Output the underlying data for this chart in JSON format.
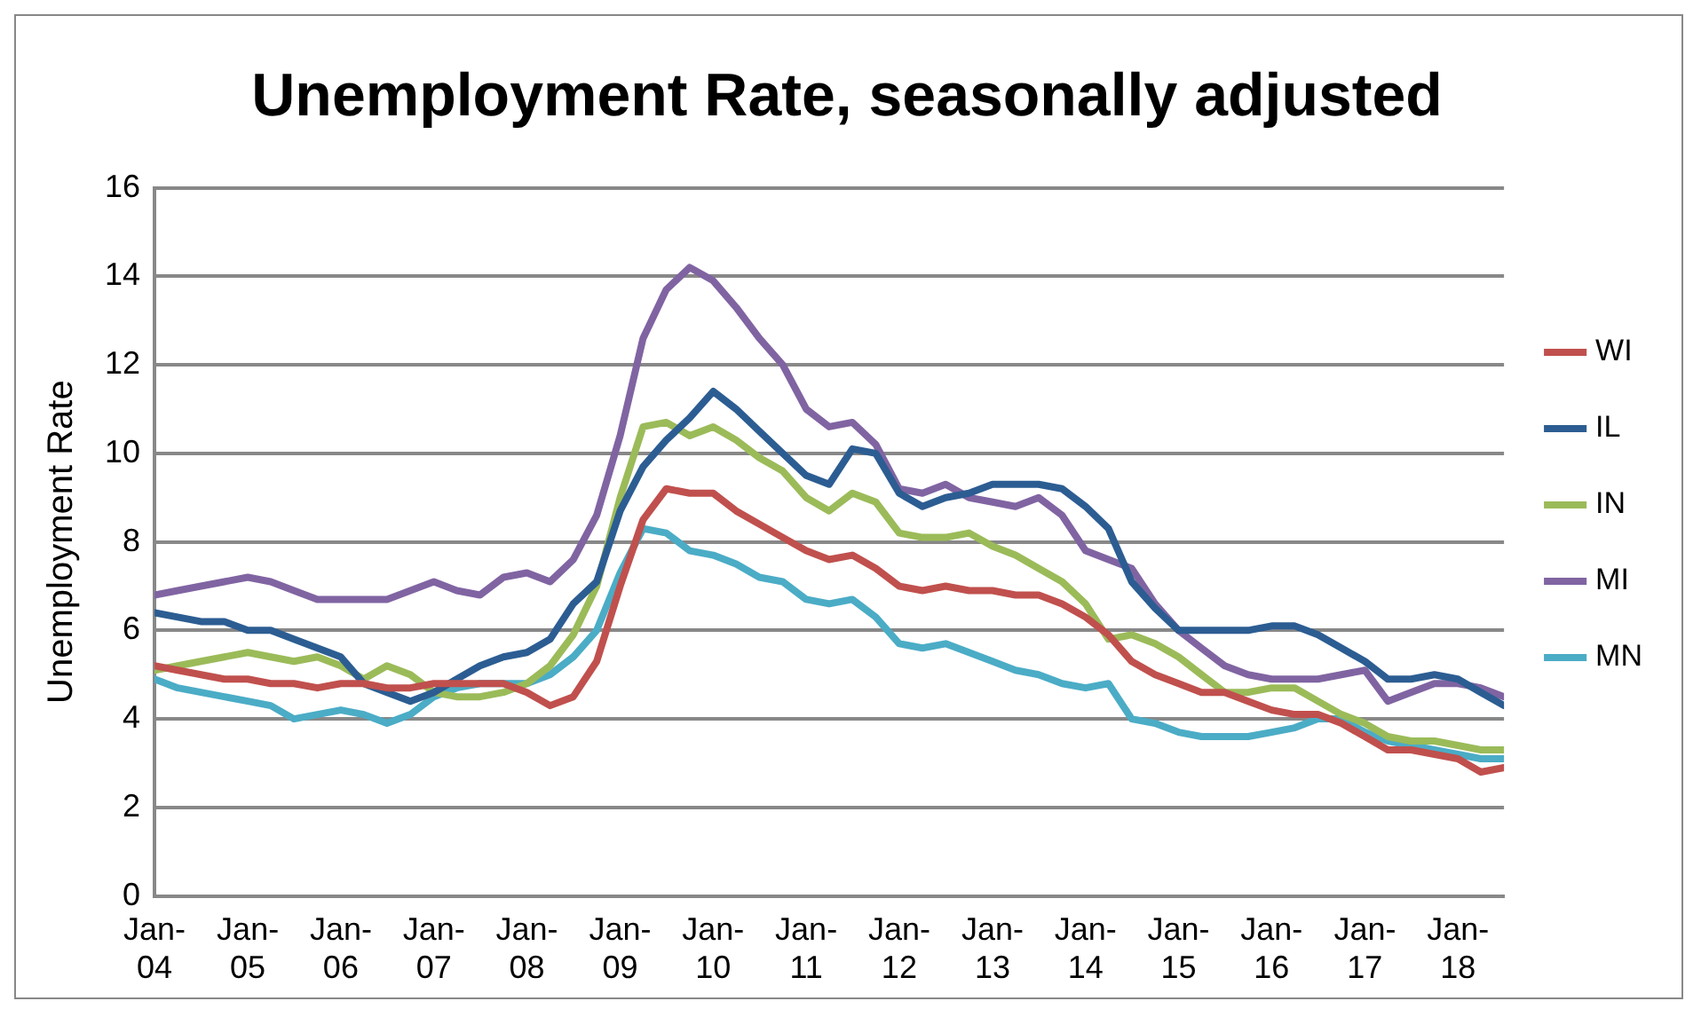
{
  "chart_data": {
    "type": "line",
    "title": "Unemployment Rate, seasonally adjusted",
    "ylabel": "Unemployment Rate",
    "x": [
      "2004-01",
      "2004-04",
      "2004-07",
      "2004-10",
      "2005-01",
      "2005-04",
      "2005-07",
      "2005-10",
      "2006-01",
      "2006-04",
      "2006-07",
      "2006-10",
      "2007-01",
      "2007-04",
      "2007-07",
      "2007-10",
      "2008-01",
      "2008-04",
      "2008-07",
      "2008-10",
      "2009-01",
      "2009-04",
      "2009-07",
      "2009-10",
      "2010-01",
      "2010-04",
      "2010-07",
      "2010-10",
      "2011-01",
      "2011-04",
      "2011-07",
      "2011-10",
      "2012-01",
      "2012-04",
      "2012-07",
      "2012-10",
      "2013-01",
      "2013-04",
      "2013-07",
      "2013-10",
      "2014-01",
      "2014-04",
      "2014-07",
      "2014-10",
      "2015-01",
      "2015-04",
      "2015-07",
      "2015-10",
      "2016-01",
      "2016-04",
      "2016-07",
      "2016-10",
      "2017-01",
      "2017-04",
      "2017-07",
      "2017-10",
      "2018-01",
      "2018-04",
      "2018-07"
    ],
    "series": [
      {
        "name": "WI",
        "color": "#c0504d",
        "values": [
          5.2,
          5.1,
          5.0,
          4.9,
          4.9,
          4.8,
          4.8,
          4.7,
          4.8,
          4.8,
          4.7,
          4.7,
          4.8,
          4.8,
          4.8,
          4.8,
          4.6,
          4.3,
          4.5,
          5.3,
          7.0,
          8.5,
          9.2,
          9.1,
          9.1,
          8.7,
          8.4,
          8.1,
          7.8,
          7.6,
          7.7,
          7.4,
          7.0,
          6.9,
          7.0,
          6.9,
          6.9,
          6.8,
          6.8,
          6.6,
          6.3,
          5.9,
          5.3,
          5.0,
          4.8,
          4.6,
          4.6,
          4.4,
          4.2,
          4.1,
          4.1,
          3.9,
          3.6,
          3.3,
          3.3,
          3.2,
          3.1,
          2.8,
          2.9
        ]
      },
      {
        "name": "IL",
        "color": "#2c5d92",
        "values": [
          6.4,
          6.3,
          6.2,
          6.2,
          6.0,
          6.0,
          5.8,
          5.6,
          5.4,
          4.8,
          4.6,
          4.4,
          4.6,
          4.9,
          5.2,
          5.4,
          5.5,
          5.8,
          6.6,
          7.1,
          8.7,
          9.7,
          10.3,
          10.8,
          11.4,
          11.0,
          10.5,
          10.0,
          9.5,
          9.3,
          10.1,
          10.0,
          9.1,
          8.8,
          9.0,
          9.1,
          9.3,
          9.3,
          9.3,
          9.2,
          8.8,
          8.3,
          7.1,
          6.5,
          6.0,
          6.0,
          6.0,
          6.0,
          6.1,
          6.1,
          5.9,
          5.6,
          5.3,
          4.9,
          4.9,
          5.0,
          4.9,
          4.6,
          4.3
        ]
      },
      {
        "name": "IN",
        "color": "#9bbb59",
        "values": [
          5.1,
          5.2,
          5.3,
          5.4,
          5.5,
          5.4,
          5.3,
          5.4,
          5.2,
          4.9,
          5.2,
          5.0,
          4.6,
          4.5,
          4.5,
          4.6,
          4.8,
          5.2,
          5.9,
          7.0,
          9.0,
          10.6,
          10.7,
          10.4,
          10.6,
          10.3,
          9.9,
          9.6,
          9.0,
          8.7,
          9.1,
          8.9,
          8.2,
          8.1,
          8.1,
          8.2,
          7.9,
          7.7,
          7.4,
          7.1,
          6.6,
          5.8,
          5.9,
          5.7,
          5.4,
          5.0,
          4.6,
          4.6,
          4.7,
          4.7,
          4.4,
          4.1,
          3.9,
          3.6,
          3.5,
          3.5,
          3.4,
          3.3,
          3.3
        ]
      },
      {
        "name": "MI",
        "color": "#8064a2",
        "values": [
          6.8,
          6.9,
          7.0,
          7.1,
          7.2,
          7.1,
          6.9,
          6.7,
          6.7,
          6.7,
          6.7,
          6.9,
          7.1,
          6.9,
          6.8,
          7.2,
          7.3,
          7.1,
          7.6,
          8.6,
          10.4,
          12.6,
          13.7,
          14.2,
          13.9,
          13.3,
          12.6,
          12.0,
          11.0,
          10.6,
          10.7,
          10.2,
          9.2,
          9.1,
          9.3,
          9.0,
          8.9,
          8.8,
          9.0,
          8.6,
          7.8,
          7.6,
          7.4,
          6.6,
          6.0,
          5.6,
          5.2,
          5.0,
          4.9,
          4.9,
          4.9,
          5.0,
          5.1,
          4.4,
          4.6,
          4.8,
          4.8,
          4.7,
          4.5
        ]
      },
      {
        "name": "MN",
        "color": "#4bacc6",
        "values": [
          4.9,
          4.7,
          4.6,
          4.5,
          4.4,
          4.3,
          4.0,
          4.1,
          4.2,
          4.1,
          3.9,
          4.1,
          4.5,
          4.7,
          4.8,
          4.8,
          4.8,
          5.0,
          5.4,
          6.0,
          7.3,
          8.3,
          8.2,
          7.8,
          7.7,
          7.5,
          7.2,
          7.1,
          6.7,
          6.6,
          6.7,
          6.3,
          5.7,
          5.6,
          5.7,
          5.5,
          5.3,
          5.1,
          5.0,
          4.8,
          4.7,
          4.8,
          4.0,
          3.9,
          3.7,
          3.6,
          3.6,
          3.6,
          3.7,
          3.8,
          4.0,
          4.0,
          3.7,
          3.5,
          3.4,
          3.3,
          3.2,
          3.1,
          3.1
        ]
      }
    ],
    "xlim": [
      "2004-01",
      "2018-07"
    ],
    "xticks": [
      {
        "value": "2004-01",
        "label": "Jan-04"
      },
      {
        "value": "2005-01",
        "label": "Jan-05"
      },
      {
        "value": "2006-01",
        "label": "Jan-06"
      },
      {
        "value": "2007-01",
        "label": "Jan-07"
      },
      {
        "value": "2008-01",
        "label": "Jan-08"
      },
      {
        "value": "2009-01",
        "label": "Jan-09"
      },
      {
        "value": "2010-01",
        "label": "Jan-10"
      },
      {
        "value": "2011-01",
        "label": "Jan-11"
      },
      {
        "value": "2012-01",
        "label": "Jan-12"
      },
      {
        "value": "2013-01",
        "label": "Jan-13"
      },
      {
        "value": "2014-01",
        "label": "Jan-14"
      },
      {
        "value": "2015-01",
        "label": "Jan-15"
      },
      {
        "value": "2016-01",
        "label": "Jan-16"
      },
      {
        "value": "2017-01",
        "label": "Jan-17"
      },
      {
        "value": "2018-01",
        "label": "Jan-18"
      }
    ],
    "ylim": [
      0,
      16
    ],
    "yticks": [
      0,
      2,
      4,
      6,
      8,
      10,
      12,
      14,
      16
    ],
    "grid": "y",
    "legend": "right",
    "marker": "none",
    "line_style": "solid"
  }
}
